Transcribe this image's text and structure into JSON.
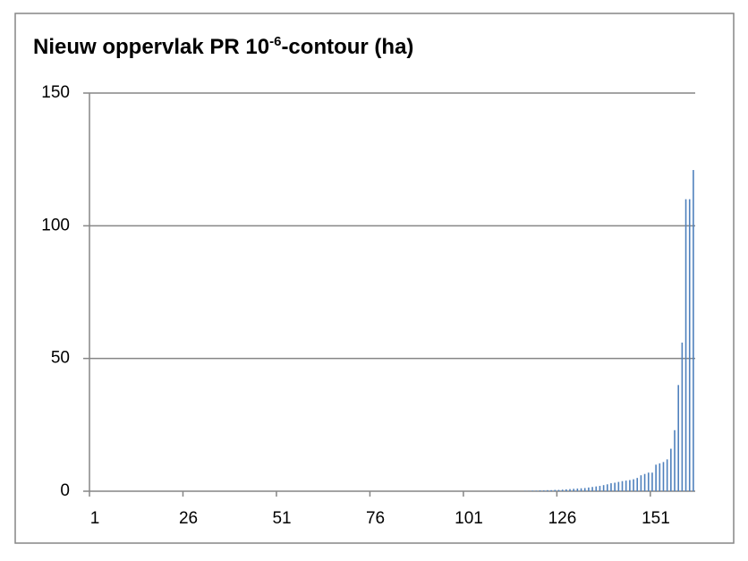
{
  "chart_data": {
    "type": "bar",
    "title_parts": [
      "Nieuw oppervlak PR 10",
      "-6",
      "-contour (ha)"
    ],
    "categories": [
      1,
      null,
      null,
      null,
      null,
      null,
      null,
      null,
      null,
      null,
      null,
      null,
      null,
      null,
      null,
      null,
      null,
      null,
      null,
      null,
      null,
      null,
      null,
      null,
      null,
      26,
      null,
      null,
      null,
      null,
      null,
      null,
      null,
      null,
      null,
      null,
      null,
      null,
      null,
      null,
      null,
      null,
      null,
      null,
      null,
      null,
      null,
      null,
      null,
      null,
      51,
      null,
      null,
      null,
      null,
      null,
      null,
      null,
      null,
      null,
      null,
      null,
      null,
      null,
      null,
      null,
      null,
      null,
      null,
      null,
      null,
      null,
      null,
      null,
      null,
      76,
      null,
      null,
      null,
      null,
      null,
      null,
      null,
      null,
      null,
      null,
      null,
      null,
      null,
      null,
      null,
      null,
      null,
      null,
      null,
      null,
      null,
      null,
      null,
      null,
      101,
      null,
      null,
      null,
      null,
      null,
      null,
      null,
      null,
      null,
      null,
      null,
      null,
      null,
      null,
      null,
      null,
      null,
      null,
      null,
      null,
      null,
      null,
      null,
      null,
      126,
      null,
      null,
      null,
      null,
      null,
      null,
      null,
      null,
      null,
      null,
      null,
      null,
      null,
      null,
      null,
      null,
      null,
      null,
      null,
      null,
      null,
      null,
      null,
      null,
      151,
      null,
      null,
      null,
      null,
      null,
      null,
      null,
      null,
      null,
      null,
      null
    ],
    "values": [
      0,
      0,
      0,
      0,
      0,
      0,
      0,
      0,
      0,
      0,
      0,
      0,
      0,
      0,
      0,
      0,
      0,
      0,
      0,
      0,
      0,
      0,
      0,
      0,
      0,
      0,
      0,
      0,
      0,
      0,
      0,
      0,
      0,
      0,
      0,
      0,
      0,
      0,
      0,
      0,
      0,
      0,
      0,
      0,
      0,
      0,
      0,
      0,
      0,
      0,
      0,
      0,
      0,
      0,
      0,
      0,
      0,
      0,
      0,
      0,
      0,
      0,
      0,
      0,
      0,
      0,
      0,
      0,
      0,
      0,
      0,
      0,
      0,
      0,
      0,
      0,
      0,
      0,
      0,
      0,
      0,
      0,
      0,
      0,
      0,
      0,
      0,
      0,
      0,
      0,
      0,
      0,
      0,
      0,
      0,
      0,
      0,
      0,
      0,
      0,
      0,
      0,
      0,
      0,
      0,
      0,
      0,
      0,
      0,
      0,
      0,
      0,
      0,
      0,
      0,
      0,
      0.1,
      0.1,
      0.2,
      0.2,
      0.3,
      0.3,
      0.4,
      0.4,
      0.5,
      0.5,
      0.6,
      0.7,
      0.8,
      0.9,
      1,
      1.1,
      1.2,
      1.4,
      1.6,
      1.8,
      2,
      2.3,
      2.6,
      3,
      3.2,
      3.5,
      3.8,
      4,
      4.2,
      4.5,
      5,
      6,
      6.5,
      7,
      7,
      10,
      10.5,
      11,
      12,
      16,
      23,
      40,
      56,
      110,
      110,
      121
    ],
    "color": "#4f81bd",
    "ylim": [
      0,
      150
    ],
    "yticks": [
      0,
      50,
      100,
      150
    ],
    "grid": true
  }
}
